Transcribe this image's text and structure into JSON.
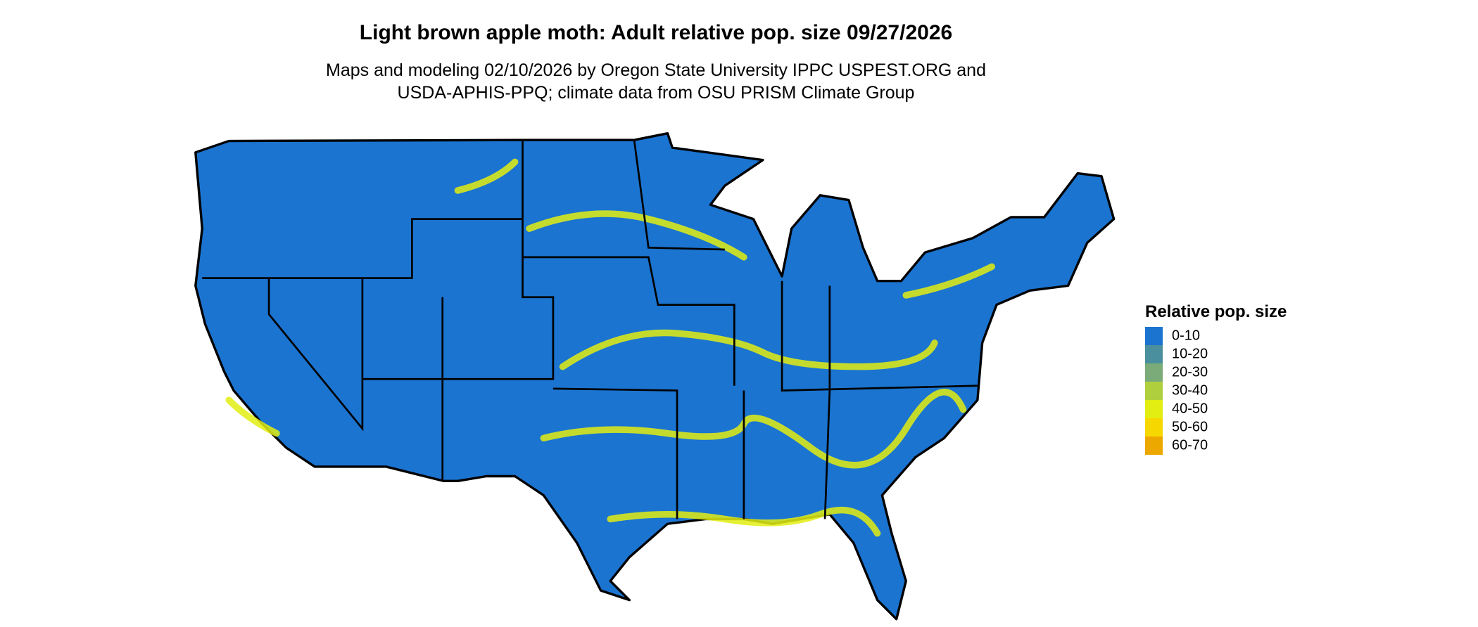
{
  "title": "Light brown apple moth: Adult relative pop. size 09/27/2026",
  "subtitle": [
    "Maps and modeling 02/10/2026 by Oregon State University IPPC USPEST.ORG and",
    "USDA-APHIS-PPQ; climate data from OSU PRISM Climate Group"
  ],
  "legend": {
    "title": "Relative pop. size",
    "items": [
      {
        "label": "0-10",
        "color": "#1b74d0"
      },
      {
        "label": "10-20",
        "color": "#4a8f9e"
      },
      {
        "label": "20-30",
        "color": "#7bab78"
      },
      {
        "label": "30-40",
        "color": "#afcf3c"
      },
      {
        "label": "40-50",
        "color": "#e2ee12"
      },
      {
        "label": "50-60",
        "color": "#f6d800"
      },
      {
        "label": "60-70",
        "color": "#eda800"
      }
    ]
  }
}
